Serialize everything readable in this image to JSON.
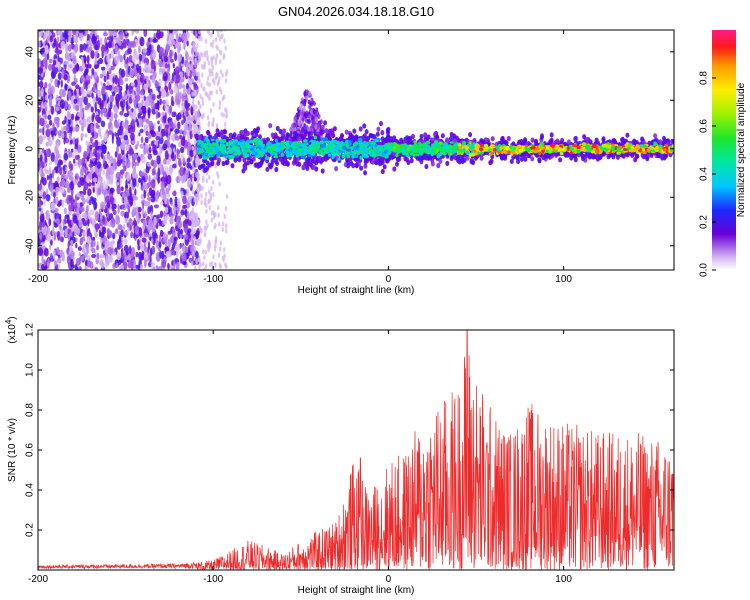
{
  "figure": {
    "title": "GN04.2026.034.18.18.G10"
  },
  "chart_data": [
    {
      "type": "heatmap",
      "xlabel": "Height of straight line (km)",
      "ylabel": "Frequency (Hz)",
      "xlim": [
        -200,
        163
      ],
      "ylim": [
        -50,
        49
      ],
      "xticks": [
        -200,
        -100,
        0,
        100
      ],
      "yticks": [
        -40,
        -20,
        0,
        20,
        40
      ],
      "colorbar": {
        "label": "Normalized spectral amplitude",
        "range": [
          0,
          1
        ],
        "ticks": [
          "0.0",
          "0.2",
          "0.4",
          "0.6",
          "0.8"
        ],
        "tick_values": [
          0.0,
          0.2,
          0.4,
          0.6,
          0.8
        ],
        "colormap": "rainbow"
      },
      "regions": [
        {
          "x": [
            -200,
            -108
          ],
          "freq_center": 0,
          "freq_halfwidth": 50,
          "amplitude": "0.1-0.3",
          "note": "broadband scattered"
        },
        {
          "x": [
            -108,
            163
          ],
          "freq_center": 0,
          "freq_halfwidth": 8,
          "amplitude": "0.3-0.95",
          "note": "narrow band around 0 Hz"
        },
        {
          "x": [
            -55,
            -40
          ],
          "freq_center": 15,
          "freq_halfwidth": 8,
          "amplitude": "0.15-0.3",
          "note": "plume above band"
        }
      ]
    },
    {
      "type": "line",
      "xlabel": "Height of straight line (km)",
      "ylabel": "SNR (10 * v/v)",
      "yscale_label": "(x10",
      "yscale_exponent": "4",
      "xlim": [
        -200,
        163
      ],
      "ylim": [
        0,
        1.2
      ],
      "xticks": [
        -200,
        -100,
        0,
        100
      ],
      "yticks": [
        "0.2",
        "0.4",
        "0.6",
        "0.8",
        "1.0",
        "1.2"
      ],
      "ytick_values": [
        0.2,
        0.4,
        0.6,
        0.8,
        1.0,
        1.2
      ],
      "color": "#ee2a2a",
      "envelope": {
        "x": [
          -200,
          -120,
          -100,
          -90,
          -80,
          -70,
          -60,
          -50,
          -40,
          -30,
          -20,
          -10,
          0,
          10,
          20,
          30,
          40,
          45,
          50,
          60,
          70,
          80,
          100,
          120,
          140,
          163
        ],
        "upper": [
          0.02,
          0.03,
          0.05,
          0.1,
          0.15,
          0.12,
          0.08,
          0.15,
          0.2,
          0.25,
          0.55,
          0.4,
          0.55,
          0.6,
          0.8,
          0.85,
          0.95,
          1.2,
          1.0,
          0.8,
          0.7,
          0.85,
          0.75,
          0.7,
          0.7,
          0.65
        ]
      }
    }
  ]
}
